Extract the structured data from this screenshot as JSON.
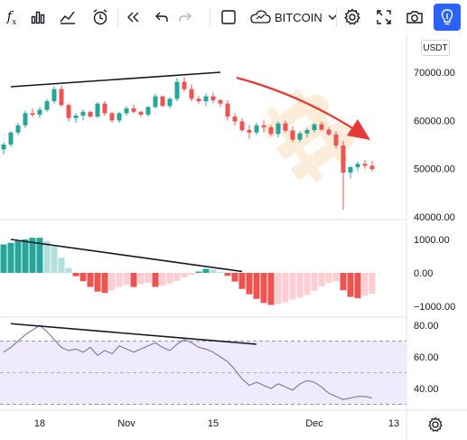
{
  "toolbar": {
    "fx_label": "f",
    "fx_sub": "x",
    "symbol": "BITCOIN",
    "icons": [
      "fx-icon",
      "bar-chart-icon",
      "indicators-icon",
      "alert-icon",
      "replay-icon",
      "undo-icon",
      "redo-icon",
      "square-icon",
      "cloud-icon",
      "chevron-down-icon",
      "gear-icon",
      "fullscreen-icon",
      "camera-icon",
      "lightbulb-icon"
    ]
  },
  "currency": "USDT",
  "colors": {
    "up": "#26a69a",
    "down": "#ef5350",
    "accent": "#2962ff",
    "trend": "#131722",
    "arrow": "#e53935",
    "rsi_band": "#efeafd",
    "rsi_line": "#7e74a3"
  },
  "chart_data": [
    {
      "type": "candlestick",
      "title": "",
      "price_axis": [
        "70000.00",
        "60000.00",
        "50000.00",
        "40000.00"
      ],
      "ylim": [
        40000,
        72000
      ],
      "x_ticks": [
        "18",
        "Nov",
        "15",
        "Dec",
        "13"
      ],
      "candles": [
        [
          54000,
          55500,
          53000,
          55000
        ],
        [
          55000,
          57800,
          54500,
          57500
        ],
        [
          57500,
          59500,
          57000,
          59000
        ],
        [
          59000,
          62000,
          58500,
          61500
        ],
        [
          61500,
          62500,
          60800,
          61200
        ],
        [
          61200,
          62800,
          60500,
          62200
        ],
        [
          62200,
          64500,
          61800,
          64000
        ],
        [
          64000,
          67000,
          63500,
          66500
        ],
        [
          66500,
          67200,
          62800,
          63200
        ],
        [
          63200,
          63500,
          59800,
          60500
        ],
        [
          60500,
          61500,
          59500,
          61000
        ],
        [
          61000,
          62300,
          60000,
          61800
        ],
        [
          61800,
          62000,
          60500,
          60800
        ],
        [
          60800,
          63800,
          60500,
          63500
        ],
        [
          63500,
          64000,
          61000,
          61500
        ],
        [
          61500,
          61800,
          59600,
          60000
        ],
        [
          60000,
          61800,
          59500,
          61500
        ],
        [
          61500,
          63000,
          61000,
          62500
        ],
        [
          62500,
          63200,
          61500,
          61800
        ],
        [
          61800,
          62000,
          60800,
          61200
        ],
        [
          61200,
          63000,
          60800,
          62800
        ],
        [
          62800,
          65500,
          62500,
          65000
        ],
        [
          65000,
          65200,
          62800,
          63000
        ],
        [
          63000,
          64800,
          62500,
          64500
        ],
        [
          64500,
          68800,
          64000,
          68000
        ],
        [
          68000,
          69000,
          66000,
          66500
        ],
        [
          66500,
          67500,
          64000,
          64500
        ],
        [
          64500,
          65000,
          63500,
          64000
        ],
        [
          64000,
          65600,
          63000,
          65000
        ],
        [
          65000,
          65800,
          63600,
          64200
        ],
        [
          64200,
          64500,
          62800,
          63500
        ],
        [
          63500,
          64200,
          60000,
          60800
        ],
        [
          60800,
          61500,
          59000,
          59800
        ],
        [
          59800,
          60500,
          57600,
          58000
        ],
        [
          58000,
          59000,
          56200,
          57500
        ],
        [
          57500,
          59500,
          57000,
          59000
        ],
        [
          59000,
          60000,
          57500,
          58600
        ],
        [
          58600,
          59000,
          56800,
          57200
        ],
        [
          57200,
          59800,
          56500,
          59400
        ],
        [
          59400,
          60000,
          57500,
          57900
        ],
        [
          57900,
          58800,
          55500,
          56000
        ],
        [
          56000,
          57800,
          55500,
          57300
        ],
        [
          57300,
          58500,
          56500,
          58000
        ],
        [
          58000,
          59500,
          57500,
          59200
        ],
        [
          59200,
          59800,
          57800,
          58100
        ],
        [
          58100,
          58600,
          56800,
          57100
        ],
        [
          57100,
          57800,
          54200,
          54800
        ],
        [
          54800,
          55800,
          41500,
          49200
        ],
        [
          49200,
          50500,
          48000,
          50300
        ],
        [
          50300,
          51500,
          49500,
          51000
        ],
        [
          51000,
          51800,
          50000,
          50600
        ],
        [
          50600,
          51600,
          49400,
          49900
        ]
      ],
      "trendline": [
        [
          1,
          67000
        ],
        [
          30,
          70000
        ]
      ]
    },
    {
      "type": "histogram",
      "title": "",
      "axis": [
        "1000.00",
        "0.00",
        "−1000.00"
      ],
      "ylim": [
        -1300,
        1300
      ],
      "values": [
        850,
        900,
        950,
        1000,
        1050,
        1050,
        950,
        800,
        450,
        150,
        -100,
        -250,
        -420,
        -560,
        -600,
        -520,
        -420,
        -360,
        -420,
        -340,
        -300,
        -420,
        -380,
        -320,
        -240,
        -140,
        -60,
        40,
        120,
        100,
        30,
        -90,
        -260,
        -480,
        -640,
        -780,
        -900,
        -960,
        -930,
        -880,
        -800,
        -740,
        -660,
        -540,
        -400,
        -300,
        -260,
        -520,
        -720,
        -760,
        -680,
        -620
      ],
      "trendline": [
        [
          1,
          1000
        ],
        [
          33,
          40
        ]
      ]
    },
    {
      "type": "line",
      "title": "",
      "axis": [
        "80.00",
        "60.00",
        "40.00"
      ],
      "ylim": [
        27,
        82
      ],
      "band": [
        30,
        70
      ],
      "values": [
        63,
        66,
        70,
        74,
        77,
        80,
        76,
        71,
        66,
        64,
        65,
        63,
        66,
        61,
        64,
        62,
        67,
        65,
        63,
        65,
        67,
        69,
        66,
        64,
        68,
        71,
        69,
        66,
        65,
        63,
        60,
        57,
        52,
        46,
        42,
        44,
        42,
        40,
        43,
        41,
        39,
        43,
        45,
        44,
        41,
        37,
        35,
        33,
        34,
        35,
        35,
        34
      ],
      "trendline": [
        [
          1,
          81
        ],
        [
          35,
          68
        ]
      ]
    }
  ]
}
